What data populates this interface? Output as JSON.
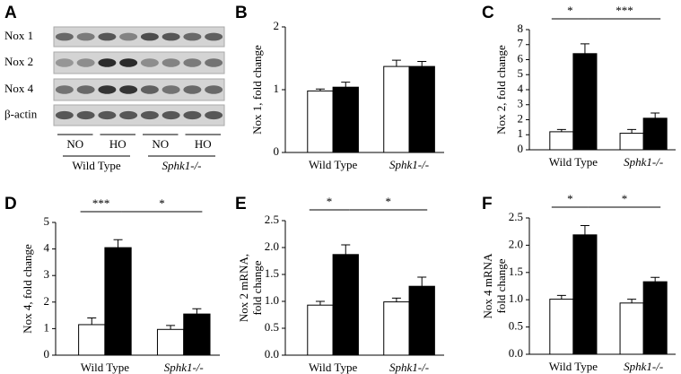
{
  "chart_data": [
    {
      "type": "blot",
      "panel": "A",
      "rows": [
        "Nox 1",
        "Nox 2",
        "Nox 4",
        "β-actin"
      ],
      "lanes": [
        "NO",
        "HO",
        "NO",
        "HO"
      ],
      "groups": [
        "Wild Type",
        "Sphk1-/-"
      ]
    },
    {
      "type": "bar",
      "panel": "B",
      "ylabel": [
        "Nox 1, fold change"
      ],
      "categories": [
        "Wild Type",
        "Sphk1-/-"
      ],
      "series": [
        {
          "color": "#ffffff",
          "values": [
            0.98,
            1.37
          ],
          "errors": [
            0.03,
            0.1
          ]
        },
        {
          "color": "#000000",
          "values": [
            1.04,
            1.37
          ],
          "errors": [
            0.08,
            0.08
          ]
        }
      ],
      "ylim": [
        0,
        2
      ],
      "yticks": [
        0,
        1,
        2
      ],
      "annotations": []
    },
    {
      "type": "bar",
      "panel": "C",
      "ylabel": [
        "Nox 2, fold change"
      ],
      "categories": [
        "Wild Type",
        "Sphk1-/-"
      ],
      "series": [
        {
          "color": "#ffffff",
          "values": [
            1.2,
            1.1
          ],
          "errors": [
            0.15,
            0.25
          ]
        },
        {
          "color": "#000000",
          "values": [
            6.4,
            2.1
          ],
          "errors": [
            0.65,
            0.35
          ]
        }
      ],
      "ylim": [
        0,
        8
      ],
      "yticks": [
        0,
        1,
        2,
        3,
        4,
        5,
        6,
        7,
        8
      ],
      "annotations": [
        "*",
        "***"
      ]
    },
    {
      "type": "bar",
      "panel": "D",
      "ylabel": [
        "Nox 4, fold change"
      ],
      "categories": [
        "Wild Type",
        "Sphk1-/-"
      ],
      "series": [
        {
          "color": "#ffffff",
          "values": [
            1.15,
            0.97
          ],
          "errors": [
            0.25,
            0.15
          ]
        },
        {
          "color": "#000000",
          "values": [
            4.05,
            1.55
          ],
          "errors": [
            0.3,
            0.2
          ]
        }
      ],
      "ylim": [
        0,
        5
      ],
      "yticks": [
        0,
        1,
        2,
        3,
        4,
        5
      ],
      "annotations": [
        "***",
        "*"
      ]
    },
    {
      "type": "bar",
      "panel": "E",
      "ylabel": [
        "Nox 2 mRNA,",
        "fold change"
      ],
      "categories": [
        "Wild Type",
        "Sphk1-/-"
      ],
      "series": [
        {
          "color": "#ffffff",
          "values": [
            0.93,
            0.99
          ],
          "errors": [
            0.07,
            0.07
          ]
        },
        {
          "color": "#000000",
          "values": [
            1.87,
            1.28
          ],
          "errors": [
            0.18,
            0.17
          ]
        }
      ],
      "ylim": [
        0,
        2.5
      ],
      "yticks": [
        {
          "value": 0,
          "label": "0.0"
        },
        0.5,
        {
          "value": 1,
          "label": "1.0"
        },
        1.5,
        {
          "value": 2,
          "label": "2.0"
        },
        2.5
      ],
      "annotations": [
        "*",
        "*"
      ]
    },
    {
      "type": "bar",
      "panel": "F",
      "ylabel": [
        "Nox 4 mRNA",
        "fold change"
      ],
      "categories": [
        "Wild Type",
        "Sphk1-/-"
      ],
      "series": [
        {
          "color": "#ffffff",
          "values": [
            1.01,
            0.94
          ],
          "errors": [
            0.07,
            0.07
          ]
        },
        {
          "color": "#000000",
          "values": [
            2.19,
            1.33
          ],
          "errors": [
            0.17,
            0.08
          ]
        }
      ],
      "ylim": [
        0,
        2.5
      ],
      "yticks": [
        {
          "value": 0,
          "label": "0.0"
        },
        0.5,
        {
          "value": 1,
          "label": "1.0"
        },
        1.5,
        {
          "value": 2,
          "label": "2.0"
        },
        2.5
      ],
      "annotations": [
        "*",
        "*"
      ]
    }
  ]
}
